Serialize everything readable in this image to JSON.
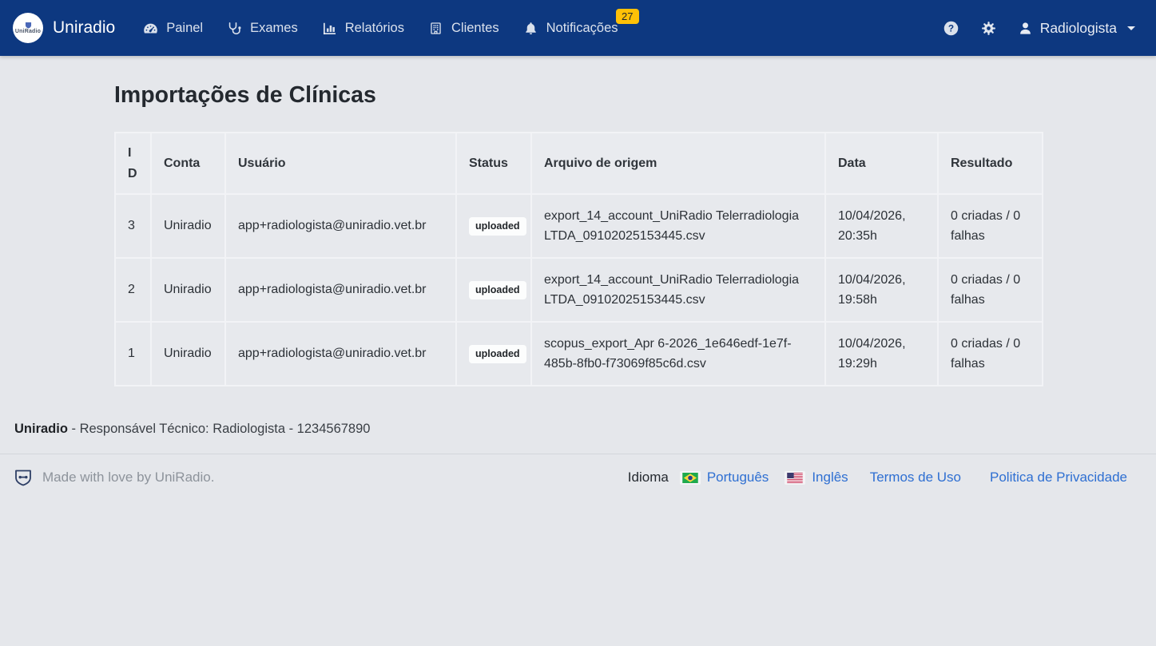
{
  "navbar": {
    "brand": "Uniradio",
    "logo_text": "UniRadio",
    "items": [
      {
        "label": "Painel",
        "icon": "dashboard-icon"
      },
      {
        "label": "Exames",
        "icon": "stethoscope-icon"
      },
      {
        "label": "Relatórios",
        "icon": "bar-chart-icon"
      },
      {
        "label": "Clientes",
        "icon": "hospital-icon"
      },
      {
        "label": "Notificações",
        "icon": "bell-icon",
        "badge": "27"
      }
    ],
    "user_label": "Radiologista"
  },
  "page": {
    "title": "Importações de Clínicas"
  },
  "table": {
    "headers": [
      "ID",
      "Conta",
      "Usuário",
      "Status",
      "Arquivo de origem",
      "Data",
      "Resultado"
    ],
    "rows": [
      {
        "id": "3",
        "conta": "Uniradio",
        "usuario": "app+radiologista@uniradio.vet.br",
        "status": "uploaded",
        "arquivo": "export_14_account_UniRadio Telerradiologia LTDA_09102025153445.csv",
        "data": "10/04/2026, 20:35h",
        "resultado": "0 criadas / 0 falhas"
      },
      {
        "id": "2",
        "conta": "Uniradio",
        "usuario": "app+radiologista@uniradio.vet.br",
        "status": "uploaded",
        "arquivo": "export_14_account_UniRadio Telerradiologia LTDA_09102025153445.csv",
        "data": "10/04/2026, 19:58h",
        "resultado": "0 criadas / 0 falhas"
      },
      {
        "id": "1",
        "conta": "Uniradio",
        "usuario": "app+radiologista@uniradio.vet.br",
        "status": "uploaded",
        "arquivo": "scopus_export_Apr 6-2026_1e646edf-1e7f-485b-8fb0-f73069f85c6d.csv",
        "data": "10/04/2026, 19:29h",
        "resultado": "0 criadas / 0 falhas"
      }
    ]
  },
  "footer": {
    "company_name": "Uniradio",
    "company_rest": "- Responsável Técnico: Radiologista - 1234567890",
    "made_with": "Made with love by UniRadio.",
    "language_label": "Idioma",
    "languages": [
      {
        "label": "Português",
        "flag": "brazil-flag-icon"
      },
      {
        "label": "Inglês",
        "flag": "us-flag-icon"
      }
    ],
    "links": [
      {
        "label": "Termos de Uso"
      },
      {
        "label": "Politica de Privacidade"
      }
    ]
  },
  "colors": {
    "navbar": "#0d3880",
    "notification_badge": "#ffc107",
    "link": "#2e6fd2",
    "page_background": "#e5e7eb"
  }
}
